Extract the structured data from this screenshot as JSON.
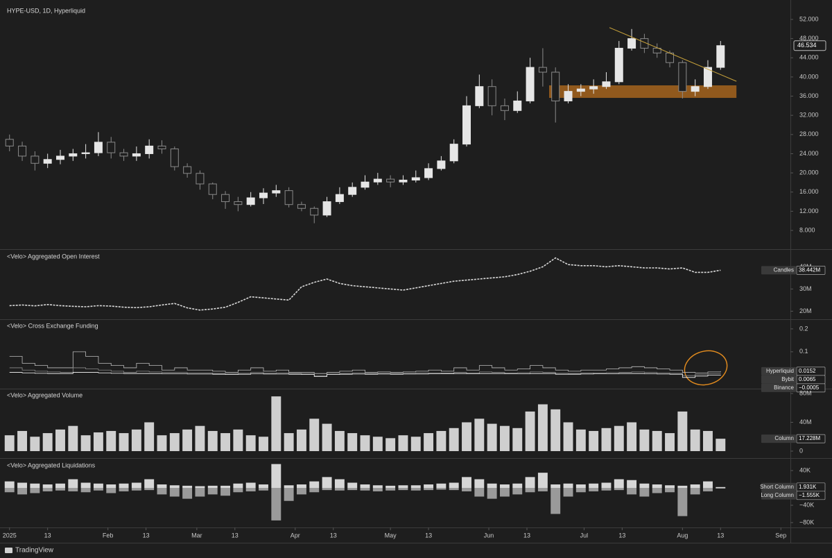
{
  "footer": "TradingView",
  "chart_data": [
    {
      "type": "candlestick",
      "title": "HYPE-USD, 1D, Hyperliquid",
      "x": [
        "2025-01-01",
        "2025-01-05",
        "2025-01-09",
        "2025-01-13",
        "2025-01-17",
        "2025-01-21",
        "2025-01-25",
        "2025-01-29",
        "2025-02-02",
        "2025-02-06",
        "2025-02-10",
        "2025-02-14",
        "2025-02-18",
        "2025-02-22",
        "2025-02-26",
        "2025-03-02",
        "2025-03-06",
        "2025-03-10",
        "2025-03-14",
        "2025-03-18",
        "2025-03-22",
        "2025-03-26",
        "2025-03-30",
        "2025-04-03",
        "2025-04-07",
        "2025-04-11",
        "2025-04-15",
        "2025-04-19",
        "2025-04-23",
        "2025-04-27",
        "2025-05-01",
        "2025-05-05",
        "2025-05-09",
        "2025-05-13",
        "2025-05-17",
        "2025-05-21",
        "2025-05-25",
        "2025-05-29",
        "2025-06-02",
        "2025-06-06",
        "2025-06-10",
        "2025-06-14",
        "2025-06-18",
        "2025-06-22",
        "2025-06-26",
        "2025-06-30",
        "2025-07-04",
        "2025-07-08",
        "2025-07-12",
        "2025-07-16",
        "2025-07-20",
        "2025-07-24",
        "2025-07-28",
        "2025-08-01",
        "2025-08-05",
        "2025-08-09",
        "2025-08-13"
      ],
      "open": [
        27,
        25.6,
        23.5,
        22,
        22.8,
        23.5,
        24,
        24.2,
        26.4,
        24.2,
        23.5,
        24,
        25.6,
        25,
        21.3,
        19.9,
        17.7,
        15.5,
        14,
        13.4,
        14.8,
        15.8,
        16.3,
        13.4,
        12.6,
        11.2,
        14,
        15.5,
        17,
        18.1,
        18.7,
        18.1,
        18.5,
        19,
        20.9,
        22.5,
        26,
        34,
        38,
        34,
        33,
        35,
        42,
        41,
        35,
        37,
        37.5,
        38,
        39,
        46,
        48,
        46,
        45,
        43,
        37,
        38,
        42
      ],
      "high": [
        28,
        26.5,
        24.5,
        24,
        24.8,
        25,
        26,
        28.5,
        27.5,
        25,
        25.5,
        27,
        26.8,
        25.5,
        22,
        20.5,
        18,
        16.2,
        15,
        16,
        16.8,
        17.5,
        17,
        14,
        13,
        15,
        17,
        18,
        19.5,
        20,
        19.5,
        19.5,
        20.5,
        22,
        23.5,
        27,
        36,
        40.5,
        39.5,
        35.5,
        37,
        44,
        46,
        42,
        38.5,
        38.5,
        39.5,
        41,
        47.5,
        50,
        49,
        47,
        45.5,
        43.5,
        39.5,
        43.5,
        47.5
      ],
      "low": [
        24.5,
        22.5,
        20.5,
        21,
        21.8,
        22.5,
        23,
        23.5,
        23,
        22.5,
        22.5,
        23,
        24,
        20.5,
        19,
        16.5,
        14.5,
        12.5,
        12,
        13,
        13.5,
        15,
        12.8,
        12,
        9.5,
        10.8,
        13.5,
        15,
        16.5,
        17.5,
        17,
        17.5,
        18,
        18.5,
        20.5,
        22,
        25.5,
        33.5,
        32,
        31,
        32.5,
        34.5,
        38,
        30.5,
        34.5,
        36,
        36.5,
        37.5,
        38.5,
        45.5,
        45,
        44,
        42,
        35.5,
        36,
        37.5,
        41.5
      ],
      "close": [
        25.6,
        23.5,
        22,
        22.8,
        23.5,
        24,
        24.2,
        26.4,
        24.2,
        23.5,
        24,
        25.6,
        25,
        21.3,
        19.9,
        17.7,
        15.5,
        14,
        13.4,
        14.8,
        15.8,
        16.3,
        13.4,
        12.6,
        11.2,
        14,
        15.5,
        17,
        18.1,
        18.7,
        18.1,
        18.5,
        19,
        20.9,
        22.5,
        26,
        34,
        38,
        34,
        33,
        35,
        42,
        41,
        35,
        37,
        37.5,
        38,
        39,
        46,
        48,
        46,
        45,
        43,
        37,
        38,
        42,
        46.534
      ],
      "up_color": "#e6e6e6",
      "down_color": "#8a8a8a",
      "last_price": 46.534,
      "trendline": {
        "x": [
          "2025-07-09",
          "2025-08-18"
        ],
        "y": [
          50.3,
          39.1
        ],
        "color": "#c8a23a"
      },
      "zone": {
        "x": [
          "2025-06-20",
          "2025-08-18"
        ],
        "y": [
          35.64,
          38.25
        ],
        "color": "#b86e1e"
      },
      "xlim": [
        "2024-12-29",
        "2025-09-04"
      ],
      "xticks": [
        {
          "value": "2025-01-01",
          "label": "2025"
        },
        {
          "value": "2025-01-13",
          "label": "13"
        },
        {
          "value": "2025-02-01",
          "label": "Feb"
        },
        {
          "value": "2025-02-13",
          "label": "13"
        },
        {
          "value": "2025-03-01",
          "label": "Mar"
        },
        {
          "value": "2025-03-13",
          "label": "13"
        },
        {
          "value": "2025-04-01",
          "label": "Apr"
        },
        {
          "value": "2025-04-13",
          "label": "13"
        },
        {
          "value": "2025-05-01",
          "label": "May"
        },
        {
          "value": "2025-05-13",
          "label": "13"
        },
        {
          "value": "2025-06-01",
          "label": "Jun"
        },
        {
          "value": "2025-06-13",
          "label": "13"
        },
        {
          "value": "2025-07-01",
          "label": "Jul"
        },
        {
          "value": "2025-07-13",
          "label": "13"
        },
        {
          "value": "2025-08-01",
          "label": "Aug"
        },
        {
          "value": "2025-08-13",
          "label": "13"
        },
        {
          "value": "2025-09-01",
          "label": "Sep"
        }
      ],
      "ylim": [
        4.24,
        56.05
      ],
      "yticks": [
        {
          "value": 8,
          "label": "8.000"
        },
        {
          "value": 12,
          "label": "12.000"
        },
        {
          "value": 16,
          "label": "16.000"
        },
        {
          "value": 20,
          "label": "20.000"
        },
        {
          "value": 24,
          "label": "24.000"
        },
        {
          "value": 28,
          "label": "28.000"
        },
        {
          "value": 32,
          "label": "32.000"
        },
        {
          "value": 36,
          "label": "36.000"
        },
        {
          "value": 40,
          "label": "40.000"
        },
        {
          "value": 44,
          "label": "44.000"
        },
        {
          "value": 48,
          "label": "48.000"
        },
        {
          "value": 52,
          "label": "52.000"
        }
      ]
    },
    {
      "type": "line",
      "title": "<Velo> Aggregated Open Interest",
      "series": [
        {
          "name": "Candles",
          "color": "#d9d9d9",
          "tag": {
            "value": 38.442,
            "label": "38.442M"
          },
          "values": [
            22.5,
            22.8,
            22.4,
            23,
            22.5,
            22.2,
            22,
            22.5,
            22.3,
            21.8,
            21.6,
            22,
            22.8,
            23.5,
            21.5,
            20.5,
            21,
            21.8,
            24,
            26.5,
            26,
            25.5,
            25,
            31,
            33,
            34.5,
            32.5,
            31.5,
            31,
            30.5,
            30,
            29.5,
            30.5,
            31.5,
            32.5,
            33.5,
            34,
            34.5,
            35,
            35.5,
            36.5,
            38,
            40,
            44,
            41,
            40.5,
            40.5,
            40,
            40.5,
            40,
            39.5,
            39.5,
            39,
            39.5,
            37.5,
            37.5,
            38.442
          ]
        }
      ],
      "ylim": [
        17,
        47
      ],
      "yticks": [
        {
          "value": 20,
          "label": "20M"
        },
        {
          "value": 30,
          "label": "30M"
        },
        {
          "value": 40,
          "label": "40M"
        }
      ]
    },
    {
      "type": "step",
      "title": "<Velo> Cross Exchange Funding",
      "series": [
        {
          "name": "Hyperliquid",
          "color": "#bdbdbd",
          "tag": 0.0152,
          "values": [
            0.08,
            0.05,
            0.04,
            0.03,
            0.03,
            0.1,
            0.08,
            0.05,
            0.04,
            0.03,
            0.05,
            0.04,
            0.02,
            0.03,
            0.02,
            0.02,
            0.015,
            0.01,
            0.02,
            0.03,
            0.015,
            0.02,
            0.01,
            0.01,
            0.005,
            0.01,
            0.015,
            0.02,
            0.01,
            0.012,
            0.01,
            0.012,
            0.015,
            0.02,
            0.015,
            0.03,
            0.02,
            0.04,
            0.03,
            0.02,
            0.025,
            0.04,
            0.03,
            0.02,
            0.015,
            0.02,
            0.02,
            0.025,
            0.03,
            0.035,
            0.03,
            0.025,
            0.02,
            0.01,
            0.008,
            0.012,
            0.0152
          ]
        },
        {
          "name": "Bybit",
          "color": "#8c8c8c",
          "tag": 0.0065,
          "values": [
            0.03,
            0.02,
            0.015,
            0.012,
            0.01,
            0.03,
            0.025,
            0.02,
            0.015,
            0.01,
            0.015,
            0.012,
            0.01,
            0.01,
            0.008,
            0.008,
            0.005,
            0.004,
            0.006,
            0.01,
            0.006,
            0.008,
            0.005,
            0.004,
            -0.005,
            0.003,
            0.005,
            0.008,
            0.005,
            0.006,
            0.005,
            0.006,
            0.007,
            0.008,
            0.007,
            0.01,
            0.008,
            0.012,
            0.01,
            0.008,
            0.009,
            0.012,
            0.01,
            0.006,
            0.005,
            0.007,
            0.008,
            0.009,
            0.01,
            0.012,
            0.01,
            0.008,
            0.006,
            -0.004,
            0.002,
            0.005,
            0.0065
          ]
        },
        {
          "name": "Binance",
          "color": "#ffffff",
          "tag": {
            "value": -0.0005,
            "label": "−0.0005"
          },
          "values": [
            0.01,
            0.008,
            0.006,
            0.005,
            0.005,
            0.01,
            0.01,
            0.008,
            0.006,
            0.005,
            0.005,
            0.005,
            0.004,
            0.004,
            0.003,
            0.003,
            0.002,
            0.001,
            0.002,
            0.004,
            0.003,
            0.003,
            0.002,
            0.001,
            -0.008,
            0.001,
            0.002,
            0.003,
            0.002,
            0.003,
            0.002,
            0.003,
            0.003,
            0.004,
            0.004,
            0.005,
            0.004,
            0.005,
            0.005,
            0.004,
            0.004,
            0.005,
            0.005,
            0.002,
            0.002,
            0.003,
            0.004,
            0.004,
            0.005,
            0.005,
            0.004,
            0.003,
            0.002,
            -0.012,
            -0.006,
            -0.002,
            -0.0005
          ]
        }
      ],
      "ylim": [
        -0.055,
        0.236
      ],
      "yticks": [
        0.1,
        0.2
      ]
    },
    {
      "type": "bar",
      "title": "<Velo> Aggregated Volume",
      "series": [
        {
          "name": "Column",
          "color": "#cfcfcf",
          "tag": {
            "value": 17.228,
            "label": "17.228M"
          },
          "values": [
            22,
            28,
            20,
            25,
            30,
            35,
            22,
            26,
            28,
            25,
            30,
            40,
            22,
            25,
            30,
            35,
            28,
            25,
            30,
            22,
            20,
            76,
            25,
            30,
            45,
            38,
            28,
            25,
            22,
            20,
            18,
            22,
            20,
            25,
            28,
            32,
            40,
            45,
            38,
            35,
            32,
            55,
            65,
            58,
            40,
            30,
            28,
            32,
            35,
            40,
            30,
            28,
            25,
            55,
            30,
            28,
            17.228
          ]
        }
      ],
      "ylim": [
        -7.7,
        84.8
      ],
      "yticks": [
        0,
        {
          "value": 40,
          "label": "40M"
        },
        {
          "value": 80,
          "label": "80M"
        }
      ]
    },
    {
      "type": "bar",
      "title": "<Velo> Aggregated Liquidations",
      "series": [
        {
          "name": "Short Column",
          "color": "#d6d6d6",
          "tag": {
            "value": 1.931,
            "label": "1.931K"
          },
          "values": [
            15,
            12,
            10,
            8,
            10,
            20,
            12,
            10,
            8,
            10,
            12,
            20,
            8,
            6,
            5,
            4,
            5,
            5,
            10,
            12,
            8,
            55,
            6,
            8,
            15,
            25,
            20,
            12,
            8,
            6,
            5,
            6,
            6,
            8,
            10,
            12,
            25,
            20,
            10,
            8,
            10,
            25,
            35,
            8,
            10,
            8,
            10,
            12,
            20,
            18,
            10,
            8,
            6,
            5,
            8,
            15,
            1.931
          ]
        },
        {
          "name": "Long Column",
          "color": "#9a9a9a",
          "tag": {
            "value": -1.555,
            "label": "−1.555K"
          },
          "values": [
            -10,
            -15,
            -12,
            -8,
            -6,
            -8,
            -10,
            -6,
            -12,
            -8,
            -6,
            -5,
            -15,
            -20,
            -25,
            -20,
            -15,
            -18,
            -10,
            -8,
            -6,
            -75,
            -30,
            -15,
            -10,
            -5,
            -6,
            -5,
            -6,
            -8,
            -6,
            -5,
            -6,
            -5,
            -4,
            -5,
            -8,
            -20,
            -25,
            -20,
            -15,
            -10,
            -8,
            -60,
            -20,
            -10,
            -8,
            -6,
            -5,
            -15,
            -20,
            -12,
            -10,
            -65,
            -15,
            -8,
            -1.555
          ]
        }
      ],
      "ylim": [
        -88,
        65.6
      ],
      "yticks": [
        {
          "value": 40,
          "label": "40K"
        },
        {
          "value": -40,
          "label": "−40K"
        },
        {
          "value": -80,
          "label": "−80K"
        }
      ]
    }
  ]
}
